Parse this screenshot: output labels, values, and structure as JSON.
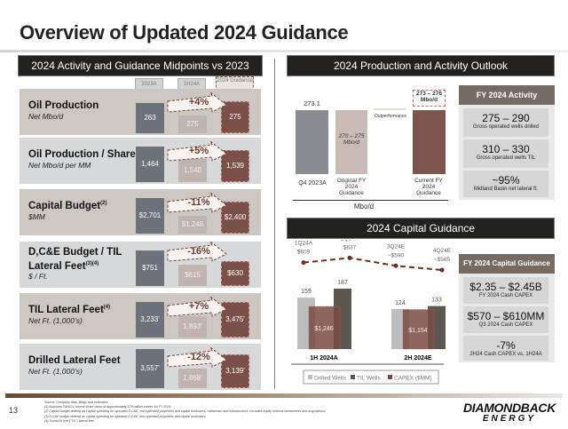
{
  "title": "Overview of Updated 2024 Guidance",
  "left": {
    "header": "2024 Activity and Guidance Midpoints vs 2023",
    "columns": [
      "2023A",
      "1H24A",
      "2024 Guidance"
    ],
    "rows": [
      {
        "title": "Oil Production",
        "sup": "",
        "subtitle": "Net Mbo/d",
        "v2023": "263",
        "v1h24": "275",
        "guidance": "275",
        "change": "+4%"
      },
      {
        "title": "Oil Production / Share",
        "sup": "(1)",
        "subtitle": "Net Mbo/d per MM",
        "v2023": "1,464",
        "v1h24": "1,540",
        "guidance": "1,539",
        "change": "+5%"
      },
      {
        "title": "Capital Budget",
        "sup": "(2)",
        "subtitle": "$MM",
        "v2023": "$2,701",
        "v1h24": "$1,246",
        "guidance": "$2,400",
        "change": "-11%"
      },
      {
        "title": "D,C&E Budget / TIL Lateral Feet",
        "sup": "(3)(4)",
        "subtitle": "$ / Ft.",
        "v2023": "$751",
        "v1h24": "$615",
        "guidance": "$630",
        "change": "-16%"
      },
      {
        "title": "TIL Lateral Feet",
        "sup": "(4)",
        "subtitle": "Net Ft. (1,000’s)",
        "v2023": "3,233'",
        "v1h24": "1,893'",
        "guidance": "3,475'",
        "change": "+7%"
      },
      {
        "title": "Drilled Lateral Feet",
        "sup": "",
        "subtitle": "Net Ft. (1,000’s)",
        "v2023": "3,557'",
        "v1h24": "1,868'",
        "guidance": "3,139'",
        "change": "-12%"
      }
    ]
  },
  "production": {
    "header": "2024 Production and Activity Outlook",
    "q4_value": "273.1",
    "q4_label": "Q4 2023A",
    "original_range": "270 – 275 Mbo/d",
    "original_label": "Original FY 2024 Guidance",
    "outperformance": "Outperformance",
    "current_range": "273 – 276 Mbo/d",
    "current_label": "Current FY 2024 Guidance",
    "unit": "Mbo/d"
  },
  "activity": {
    "header": "FY 2024 Activity",
    "cards": [
      {
        "value": "275 – 290",
        "label": "Gross operated wells drilled"
      },
      {
        "value": "310 – 330",
        "label": "Gross operated wells TIL"
      },
      {
        "value": "~95%",
        "label": "Midland Basin net lateral ft."
      }
    ]
  },
  "capital": {
    "header": "2024 Capital Guidance"
  },
  "chart_data": {
    "type": "bar",
    "categories": [
      "1H 2024A",
      "2H 2024E"
    ],
    "series": [
      {
        "name": "Drilled Wells",
        "values": [
          159,
          124
        ],
        "color": "#bdbdbd"
      },
      {
        "name": "TIL Wells",
        "values": [
          187,
          133
        ],
        "color": "#5e5750"
      },
      {
        "name": "CAPEX ($MM)",
        "values": [
          1246,
          1154
        ],
        "labels": [
          "$1,246",
          "$1,154"
        ],
        "color": "#7a4b42"
      }
    ],
    "line": {
      "quarters": [
        "1Q24A",
        "2Q24A",
        "3Q24E",
        "4Q24E"
      ],
      "values": [
        609,
        637,
        590,
        565
      ],
      "labels": [
        "$609",
        "$637",
        "~$590",
        "~$565"
      ],
      "color": "#6b2e22"
    },
    "legend": "bottom"
  },
  "capital_guidance": {
    "header": "FY 2024 Capital Guidance",
    "cards": [
      {
        "value": "$2.35 – $2.45B",
        "label": "FY 2024 Cash CAPEX"
      },
      {
        "value": "$570 – $610MM",
        "label": "Q3 2024 Cash CAPEX"
      },
      {
        "value": "-7%",
        "label": "2H24 Cash CAPEX vs. 1H24A"
      }
    ]
  },
  "footer": {
    "page": "13",
    "notes": [
      "Source: Company data, filings and estimates.",
      "(1)   Assumes FANG’s current share count of approximately 178 million shares for FY 2024.",
      "(2)   Capital budget defined as capital spending for operated D,C&E, non-operated properties and capital workovers, midstream and infrastructure; excludes equity method investments and acquisitions.",
      "(3)   D,C&E budget defined as capital spending for operated D,C&E, non-operated properties and capital workovers.",
      "(4)   Turned in line (“TIL”) lateral feet."
    ],
    "logo": "DIAMONDBACK",
    "logo_sub": "ENERGY"
  }
}
